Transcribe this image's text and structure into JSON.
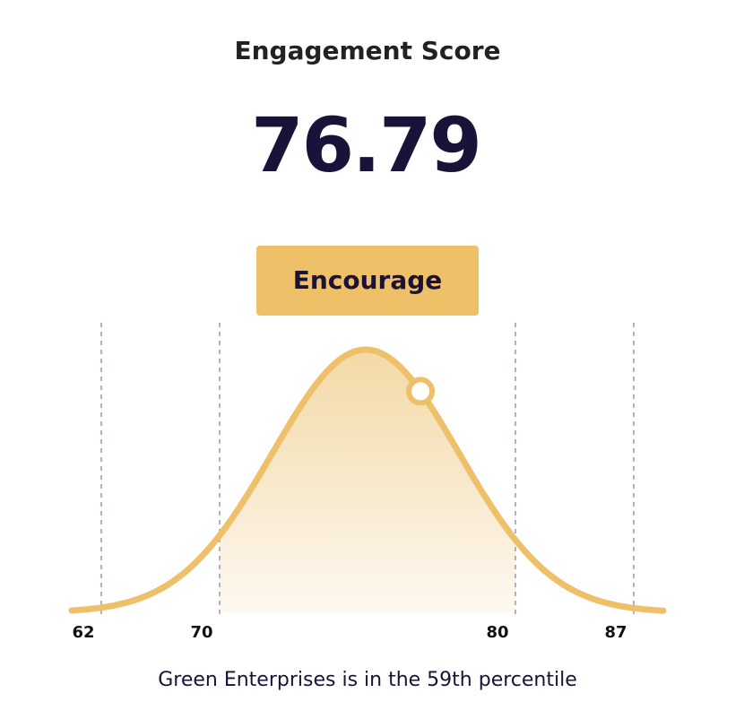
{
  "header": {
    "title": "Engagement Score"
  },
  "score": 76.79,
  "status": "Encourage",
  "distribution": {
    "ticks": [
      62,
      70,
      80,
      87
    ]
  },
  "caption": "Green Enterprises is in the 59th percentile"
}
